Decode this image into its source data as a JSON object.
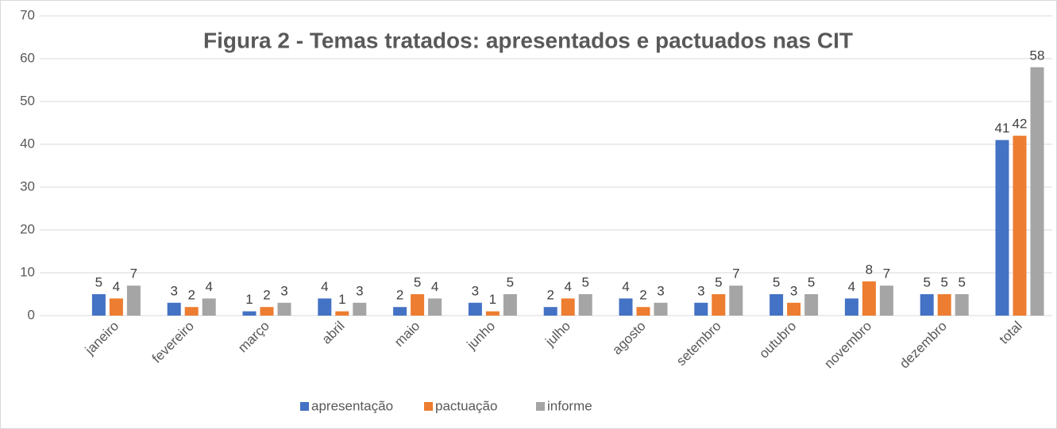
{
  "chart_data": {
    "type": "bar",
    "title": "Figura 2 - Temas tratados: apresentados e pactuados nas CIT",
    "categories": [
      "janeiro",
      "fevereiro",
      "março",
      "abril",
      "maio",
      "junho",
      "julho",
      "agosto",
      "setembro",
      "outubro",
      "novembro",
      "dezembro",
      "total"
    ],
    "series": [
      {
        "name": "apresentação",
        "color": "#4472c4",
        "values": [
          5,
          3,
          1,
          4,
          2,
          3,
          2,
          4,
          3,
          5,
          4,
          5,
          41
        ]
      },
      {
        "name": "pactuação",
        "color": "#ed7d31",
        "values": [
          4,
          2,
          2,
          1,
          5,
          1,
          4,
          2,
          5,
          3,
          8,
          5,
          42
        ]
      },
      {
        "name": "informe",
        "color": "#a5a5a5",
        "values": [
          7,
          4,
          3,
          3,
          4,
          5,
          5,
          3,
          7,
          5,
          7,
          5,
          58
        ]
      }
    ],
    "ylim": [
      0,
      70
    ],
    "yticks": [
      0,
      10,
      20,
      30,
      40,
      50,
      60,
      70
    ],
    "grid": true,
    "legend": "bottom"
  }
}
